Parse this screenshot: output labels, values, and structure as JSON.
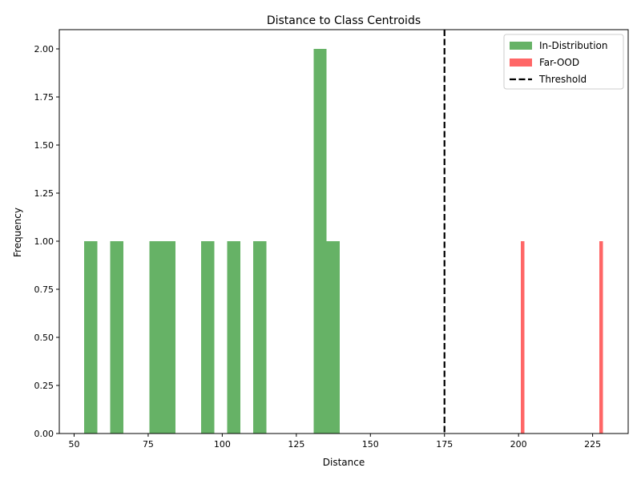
{
  "chart_data": {
    "type": "histogram",
    "title": "Distance to Class Centroids",
    "xlabel": "Distance",
    "ylabel": "Frequency",
    "xlim": [
      45,
      237
    ],
    "ylim": [
      0,
      2.1
    ],
    "x_ticks": [
      50,
      75,
      100,
      125,
      150,
      175,
      200,
      225
    ],
    "y_ticks": [
      0.0,
      0.25,
      0.5,
      0.75,
      1.0,
      1.25,
      1.5,
      1.75,
      2.0
    ],
    "y_tick_labels": [
      "0.00",
      "0.25",
      "0.50",
      "0.75",
      "1.00",
      "1.25",
      "1.50",
      "1.75",
      "2.00"
    ],
    "legend_position": "top-right",
    "series": [
      {
        "name": "In-Distribution",
        "color": "#66b266",
        "bins": [
          {
            "x0": 53.4,
            "x1": 57.8,
            "count": 1
          },
          {
            "x0": 62.2,
            "x1": 66.6,
            "count": 1
          },
          {
            "x0": 75.4,
            "x1": 79.8,
            "count": 1
          },
          {
            "x0": 79.8,
            "x1": 84.2,
            "count": 1
          },
          {
            "x0": 92.9,
            "x1": 97.3,
            "count": 1
          },
          {
            "x0": 101.7,
            "x1": 106.1,
            "count": 1
          },
          {
            "x0": 110.5,
            "x1": 114.9,
            "count": 1
          },
          {
            "x0": 130.8,
            "x1": 135.2,
            "count": 2
          },
          {
            "x0": 135.2,
            "x1": 139.6,
            "count": 1
          }
        ]
      },
      {
        "name": "Far-OOD",
        "color": "#ff6666",
        "bins": [
          {
            "x0": 200.8,
            "x1": 202.0,
            "count": 1
          },
          {
            "x0": 227.3,
            "x1": 228.5,
            "count": 1
          }
        ]
      }
    ],
    "threshold": {
      "name": "Threshold",
      "x": 175,
      "color": "#000000"
    }
  }
}
